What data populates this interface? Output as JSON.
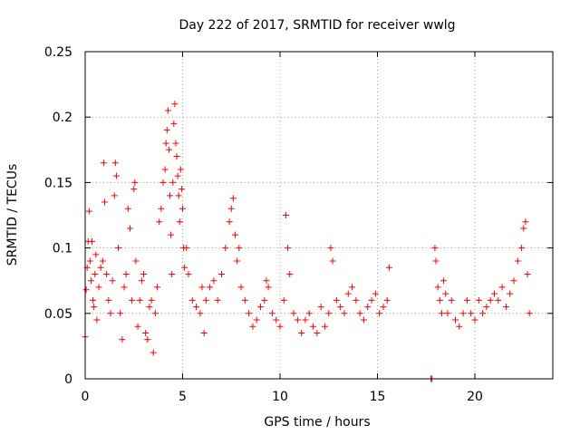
{
  "chart_data": {
    "type": "scatter",
    "title": "Day 222 of 2017, SRMTID for receiver wwlg",
    "xlabel": "GPS time / hours",
    "ylabel": "SRMTID / TECUs",
    "xlim": [
      0,
      24
    ],
    "ylim": [
      0,
      0.25
    ],
    "xticks": [
      0,
      5,
      10,
      15,
      20
    ],
    "xtick_labels": [
      "0",
      "5",
      "10",
      "15",
      "20"
    ],
    "yticks": [
      0,
      0.05,
      0.1,
      0.15,
      0.2,
      0.25
    ],
    "ytick_labels": [
      "0",
      "0.05",
      "0.1",
      "0.15",
      "0.2",
      "0.25"
    ],
    "grid": true,
    "marker": "+",
    "color": "#ff0000",
    "series": [
      {
        "name": "SRMTID",
        "points": [
          [
            0.0,
            0.032
          ],
          [
            0.05,
            0.068
          ],
          [
            0.1,
            0.085
          ],
          [
            0.15,
            0.105
          ],
          [
            0.2,
            0.128
          ],
          [
            0.25,
            0.09
          ],
          [
            0.3,
            0.075
          ],
          [
            0.35,
            0.105
          ],
          [
            0.4,
            0.06
          ],
          [
            0.45,
            0.055
          ],
          [
            0.5,
            0.08
          ],
          [
            0.55,
            0.095
          ],
          [
            0.6,
            0.045
          ],
          [
            0.7,
            0.07
          ],
          [
            0.8,
            0.085
          ],
          [
            0.9,
            0.09
          ],
          [
            0.95,
            0.165
          ],
          [
            1.0,
            0.135
          ],
          [
            1.1,
            0.08
          ],
          [
            1.2,
            0.06
          ],
          [
            1.3,
            0.05
          ],
          [
            1.4,
            0.075
          ],
          [
            1.5,
            0.14
          ],
          [
            1.55,
            0.165
          ],
          [
            1.6,
            0.155
          ],
          [
            1.7,
            0.1
          ],
          [
            1.8,
            0.05
          ],
          [
            1.9,
            0.03
          ],
          [
            2.0,
            0.07
          ],
          [
            2.1,
            0.08
          ],
          [
            2.2,
            0.13
          ],
          [
            2.3,
            0.115
          ],
          [
            2.4,
            0.06
          ],
          [
            2.5,
            0.145
          ],
          [
            2.55,
            0.15
          ],
          [
            2.6,
            0.09
          ],
          [
            2.7,
            0.04
          ],
          [
            2.8,
            0.06
          ],
          [
            2.9,
            0.075
          ],
          [
            3.0,
            0.08
          ],
          [
            3.1,
            0.035
          ],
          [
            3.2,
            0.03
          ],
          [
            3.3,
            0.055
          ],
          [
            3.4,
            0.06
          ],
          [
            3.5,
            0.02
          ],
          [
            3.6,
            0.05
          ],
          [
            3.7,
            0.07
          ],
          [
            3.8,
            0.12
          ],
          [
            3.9,
            0.13
          ],
          [
            4.0,
            0.15
          ],
          [
            4.1,
            0.16
          ],
          [
            4.15,
            0.18
          ],
          [
            4.2,
            0.19
          ],
          [
            4.25,
            0.205
          ],
          [
            4.3,
            0.175
          ],
          [
            4.35,
            0.14
          ],
          [
            4.4,
            0.11
          ],
          [
            4.45,
            0.08
          ],
          [
            4.5,
            0.15
          ],
          [
            4.55,
            0.195
          ],
          [
            4.6,
            0.21
          ],
          [
            4.65,
            0.18
          ],
          [
            4.7,
            0.17
          ],
          [
            4.75,
            0.155
          ],
          [
            4.8,
            0.14
          ],
          [
            4.85,
            0.12
          ],
          [
            4.9,
            0.16
          ],
          [
            4.95,
            0.145
          ],
          [
            5.0,
            0.13
          ],
          [
            5.05,
            0.1
          ],
          [
            5.1,
            0.085
          ],
          [
            5.2,
            0.1
          ],
          [
            5.3,
            0.08
          ],
          [
            5.5,
            0.06
          ],
          [
            5.7,
            0.055
          ],
          [
            5.9,
            0.05
          ],
          [
            6.0,
            0.07
          ],
          [
            6.1,
            0.035
          ],
          [
            6.2,
            0.06
          ],
          [
            6.4,
            0.07
          ],
          [
            6.6,
            0.075
          ],
          [
            6.8,
            0.06
          ],
          [
            7.0,
            0.08
          ],
          [
            7.2,
            0.1
          ],
          [
            7.4,
            0.12
          ],
          [
            7.5,
            0.13
          ],
          [
            7.6,
            0.138
          ],
          [
            7.7,
            0.11
          ],
          [
            7.8,
            0.09
          ],
          [
            7.9,
            0.1
          ],
          [
            8.0,
            0.07
          ],
          [
            8.2,
            0.06
          ],
          [
            8.4,
            0.05
          ],
          [
            8.6,
            0.04
          ],
          [
            8.8,
            0.045
          ],
          [
            9.0,
            0.055
          ],
          [
            9.2,
            0.06
          ],
          [
            9.3,
            0.075
          ],
          [
            9.4,
            0.07
          ],
          [
            9.6,
            0.05
          ],
          [
            9.8,
            0.045
          ],
          [
            10.0,
            0.04
          ],
          [
            10.2,
            0.06
          ],
          [
            10.3,
            0.125
          ],
          [
            10.4,
            0.1
          ],
          [
            10.5,
            0.08
          ],
          [
            10.7,
            0.05
          ],
          [
            10.9,
            0.045
          ],
          [
            11.1,
            0.035
          ],
          [
            11.3,
            0.045
          ],
          [
            11.5,
            0.05
          ],
          [
            11.7,
            0.04
          ],
          [
            11.9,
            0.035
          ],
          [
            12.1,
            0.055
          ],
          [
            12.3,
            0.04
          ],
          [
            12.5,
            0.05
          ],
          [
            12.6,
            0.1
          ],
          [
            12.7,
            0.09
          ],
          [
            12.9,
            0.06
          ],
          [
            13.1,
            0.055
          ],
          [
            13.3,
            0.05
          ],
          [
            13.5,
            0.065
          ],
          [
            13.7,
            0.07
          ],
          [
            13.9,
            0.06
          ],
          [
            14.1,
            0.05
          ],
          [
            14.3,
            0.045
          ],
          [
            14.5,
            0.055
          ],
          [
            14.7,
            0.06
          ],
          [
            14.9,
            0.065
          ],
          [
            15.1,
            0.05
          ],
          [
            15.3,
            0.055
          ],
          [
            15.5,
            0.06
          ],
          [
            15.6,
            0.085
          ],
          [
            17.75,
            0.0
          ],
          [
            17.8,
            0.0
          ],
          [
            17.95,
            0.1
          ],
          [
            18.0,
            0.09
          ],
          [
            18.1,
            0.07
          ],
          [
            18.2,
            0.06
          ],
          [
            18.3,
            0.05
          ],
          [
            18.4,
            0.075
          ],
          [
            18.5,
            0.065
          ],
          [
            18.6,
            0.05
          ],
          [
            18.8,
            0.06
          ],
          [
            19.0,
            0.045
          ],
          [
            19.2,
            0.04
          ],
          [
            19.4,
            0.05
          ],
          [
            19.6,
            0.06
          ],
          [
            19.8,
            0.05
          ],
          [
            20.0,
            0.045
          ],
          [
            20.2,
            0.06
          ],
          [
            20.4,
            0.05
          ],
          [
            20.6,
            0.055
          ],
          [
            20.8,
            0.06
          ],
          [
            21.0,
            0.065
          ],
          [
            21.2,
            0.06
          ],
          [
            21.4,
            0.07
          ],
          [
            21.6,
            0.055
          ],
          [
            21.8,
            0.065
          ],
          [
            22.0,
            0.075
          ],
          [
            22.2,
            0.09
          ],
          [
            22.4,
            0.1
          ],
          [
            22.5,
            0.115
          ],
          [
            22.6,
            0.12
          ],
          [
            22.7,
            0.08
          ],
          [
            22.8,
            0.05
          ]
        ]
      }
    ]
  }
}
